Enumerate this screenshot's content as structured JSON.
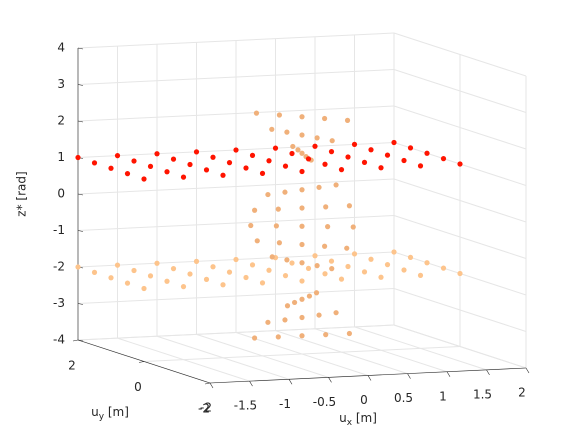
{
  "chart_data": {
    "type": "scatter3",
    "xlabel": {
      "base": "u",
      "subscript": "x",
      "suffix": " [m]"
    },
    "ylabel": {
      "base": "u",
      "subscript": "y",
      "suffix": " [m]"
    },
    "zlabel": "z* [rad]",
    "xlim": [
      -2,
      2
    ],
    "ylim": [
      -2,
      2
    ],
    "zlim": [
      -4,
      4
    ],
    "xticks": [
      -2,
      -1.5,
      -1,
      -0.5,
      0,
      0.5,
      1,
      1.5,
      2
    ],
    "yticks": [
      -2,
      0,
      2
    ],
    "zticks": [
      -4,
      -3,
      -2,
      -1,
      0,
      1,
      2,
      3,
      4
    ],
    "grid": true,
    "series": [
      {
        "color": "#fdc48c",
        "x": [
          -2,
          -1.5,
          -1,
          -0.5,
          0,
          0.5,
          1,
          1.5,
          2,
          -2,
          -1.5,
          -1,
          -0.5,
          0,
          0.5,
          1,
          1.5,
          2,
          -2,
          -1.5,
          -1,
          -0.5,
          0,
          0.5,
          1,
          1.5,
          2,
          -2,
          -1.5,
          -1,
          -0.5,
          0,
          0.5,
          1,
          1.5,
          2,
          -2,
          -1.5,
          -1,
          -0.5,
          0,
          0.5,
          1,
          1.5,
          2
        ],
        "y": [
          0,
          0,
          0,
          0,
          0,
          0,
          0,
          0,
          0,
          0.5,
          0.5,
          0.5,
          0.5,
          0.5,
          0.5,
          0.5,
          0.5,
          0.5,
          1,
          1,
          1,
          1,
          1,
          1,
          1,
          1,
          1,
          1.5,
          1.5,
          1.5,
          1.5,
          1.5,
          1.5,
          1.5,
          1.5,
          1.5,
          2,
          2,
          2,
          2,
          2,
          2,
          2,
          2,
          2
        ],
        "z": [
          -2,
          -2,
          -2,
          -2,
          -2,
          -2,
          -2,
          -2,
          -2,
          -2,
          -2,
          -2,
          -2,
          -2,
          -2,
          -2,
          -2,
          -2,
          -2,
          -2,
          -2,
          -2,
          -2,
          -2,
          -2,
          -2,
          -2,
          -2,
          -2,
          -2,
          -2,
          -2,
          -2,
          -2,
          -2,
          -2,
          -2,
          -2,
          -2,
          -2,
          -2,
          -2,
          -2,
          -2,
          -2
        ]
      },
      {
        "color": "#f0b07a",
        "x": [
          0.6,
          0.3,
          0,
          -0.3,
          -0.6,
          0.54,
          0.27,
          0,
          -0.27,
          -0.54,
          0.38,
          0.19,
          0,
          -0.19,
          -0.38,
          -0.13,
          -0.07,
          0,
          0.07,
          0.13,
          -0.37,
          -0.19,
          0,
          0.19,
          0.37,
          -0.54,
          -0.27,
          0,
          0.27,
          0.54,
          -0.6,
          -0.3,
          0,
          0.3,
          0.6,
          -0.54,
          -0.27,
          0,
          0.27,
          0.54,
          -0.13,
          -0.07,
          0,
          0.07,
          0.13,
          0.14,
          0.07,
          0,
          -0.07,
          -0.14,
          0.38,
          0.19,
          0,
          -0.19,
          -0.38
        ],
        "y": [
          0,
          0,
          0,
          0,
          0,
          0.26,
          0.13,
          0,
          -0.13,
          -0.26,
          0.47,
          0.23,
          0,
          -0.23,
          -0.47,
          0.59,
          0.29,
          0,
          -0.29,
          -0.59,
          0.47,
          0.23,
          0,
          -0.23,
          -0.47,
          0.26,
          0.13,
          0,
          -0.13,
          -0.26,
          0,
          0,
          0,
          0,
          0,
          -0.26,
          -0.13,
          0,
          0.13,
          0.26,
          -0.59,
          -0.29,
          0,
          0.29,
          0.59,
          -0.58,
          -0.29,
          0,
          0.29,
          0.58,
          -0.47,
          -0.23,
          0,
          0.23,
          0.47
        ],
        "z": [
          -3.5,
          -3.5,
          -3.5,
          -3.5,
          -3.5,
          -3,
          -3,
          -3,
          -3,
          -3,
          -2.5,
          -2.5,
          -2.5,
          -2.5,
          -2.5,
          -1.5,
          -1.5,
          -1.5,
          -1.5,
          -1.5,
          -1,
          -1,
          -1,
          -1,
          -1,
          -0.5,
          -0.5,
          -0.5,
          -0.5,
          -0.5,
          0,
          0,
          0,
          0,
          0,
          0.5,
          0.5,
          0.5,
          0.5,
          0.5,
          1.5,
          1.5,
          1.5,
          1.5,
          1.5,
          2,
          2,
          2,
          2,
          2,
          2.5,
          2.5,
          2.5,
          2.5,
          2.5
        ]
      },
      {
        "color": "#ff1400",
        "x": [
          -2,
          -1.5,
          -1,
          -0.5,
          0,
          0.5,
          1,
          1.5,
          2,
          -2,
          -1.5,
          -1,
          -0.5,
          0,
          0.5,
          1,
          1.5,
          2,
          -2,
          -1.5,
          -1,
          -0.5,
          0,
          0.5,
          1,
          1.5,
          2,
          -2,
          -1.5,
          -1,
          -0.5,
          0,
          0.5,
          1,
          1.5,
          2,
          -2,
          -1.5,
          -1,
          -0.5,
          0,
          0.5,
          1,
          1.5,
          2
        ],
        "y": [
          0,
          0,
          0,
          0,
          0,
          0,
          0,
          0,
          0,
          0.5,
          0.5,
          0.5,
          0.5,
          0.5,
          0.5,
          0.5,
          0.5,
          0.5,
          1,
          1,
          1,
          1,
          1,
          1,
          1,
          1,
          1,
          1.5,
          1.5,
          1.5,
          1.5,
          1.5,
          1.5,
          1.5,
          1.5,
          1.5,
          2,
          2,
          2,
          2,
          2,
          2,
          2,
          2,
          2
        ],
        "z": [
          1,
          1,
          1,
          1,
          1,
          1,
          1,
          1,
          1,
          1,
          1,
          1,
          1,
          1,
          1,
          1,
          1,
          1,
          1,
          1,
          1,
          1,
          1,
          1,
          1,
          1,
          1,
          1,
          1,
          1,
          1,
          1,
          1,
          1,
          1,
          1,
          1,
          1,
          1,
          1,
          1,
          1,
          1,
          1,
          1
        ]
      }
    ]
  }
}
